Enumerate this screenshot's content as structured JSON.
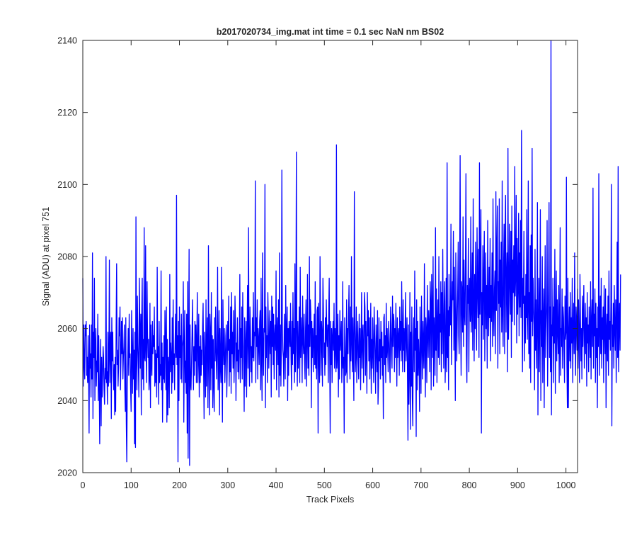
{
  "chart_data": {
    "type": "line",
    "title": "b2017020734_img.mat int time = 0.1 sec  NaN nm BS02",
    "xlabel": "Track Pixels",
    "ylabel": "Signal (ADU) at pixel 751",
    "xlim": [
      0,
      1024
    ],
    "ylim": [
      2020,
      2140
    ],
    "xticks": [
      "0",
      "100",
      "200",
      "300",
      "400",
      "500",
      "600",
      "700",
      "800",
      "900",
      "1000"
    ],
    "yticks": [
      "2020",
      "2040",
      "2060",
      "2080",
      "2100",
      "2120",
      "2140"
    ],
    "grid": false,
    "legend": "none",
    "series": [
      {
        "color": "#0000ff",
        "x_start": 0,
        "x_step": 1,
        "values": [
          2074,
          2044,
          2061,
          2050,
          2046,
          2061,
          2058,
          2062,
          2047,
          2052,
          2045,
          2058,
          2047,
          2031,
          2061,
          2049,
          2053,
          2041,
          2061,
          2046,
          2081,
          2035,
          2059,
          2052,
          2074,
          2040,
          2055,
          2060,
          2044,
          2051,
          2048,
          2064,
          2040,
          2058,
          2044,
          2028,
          2047,
          2057,
          2033,
          2052,
          2041,
          2047,
          2055,
          2052,
          2043,
          2039,
          2049,
          2046,
          2080,
          2045,
          2048,
          2039,
          2059,
          2044,
          2052,
          2079,
          2045,
          2056,
          2059,
          2035,
          2063,
          2051,
          2059,
          2047,
          2043,
          2050,
          2036,
          2052,
          2037,
          2061,
          2078,
          2050,
          2054,
          2044,
          2049,
          2063,
          2058,
          2066,
          2043,
          2052,
          2062,
          2053,
          2063,
          2046,
          2052,
          2055,
          2061,
          2043,
          2037,
          2063,
          2034,
          2023,
          2044,
          2051,
          2060,
          2047,
          2064,
          2052,
          2053,
          2043,
          2037,
          2065,
          2053,
          2042,
          2060,
          2046,
          2054,
          2028,
          2059,
          2027,
          2091,
          2052,
          2043,
          2069,
          2056,
          2050,
          2041,
          2074,
          2060,
          2049,
          2064,
          2036,
          2063,
          2074,
          2046,
          2057,
          2043,
          2088,
          2052,
          2051,
          2083,
          2054,
          2045,
          2073,
          2058,
          2052,
          2057,
          2043,
          2046,
          2067,
          2038,
          2061,
          2050,
          2047,
          2062,
          2053,
          2058,
          2055,
          2066,
          2044,
          2054,
          2045,
          2053,
          2041,
          2077,
          2052,
          2055,
          2039,
          2062,
          2045,
          2050,
          2047,
          2076,
          2043,
          2056,
          2034,
          2052,
          2046,
          2058,
          2045,
          2065,
          2057,
          2043,
          2066,
          2034,
          2057,
          2036,
          2052,
          2049,
          2038,
          2075,
          2048,
          2056,
          2052,
          2042,
          2063,
          2045,
          2068,
          2050,
          2053,
          2043,
          2056,
          2064,
          2052,
          2097,
          2050,
          2058,
          2023,
          2062,
          2040,
          2066,
          2052,
          2058,
          2046,
          2064,
          2045,
          2055,
          2057,
          2073,
          2034,
          2052,
          2065,
          2045,
          2051,
          2042,
          2064,
          2031,
          2073,
          2024,
          2055,
          2082,
          2022,
          2061,
          2045,
          2043,
          2050,
          2058,
          2068,
          2054,
          2043,
          2055,
          2047,
          2062,
          2051,
          2061,
          2045,
          2057,
          2070,
          2045,
          2052,
          2064,
          2041,
          2055,
          2045,
          2058,
          2047,
          2054,
          2050,
          2061,
          2067,
          2049,
          2035,
          2059,
          2052,
          2041,
          2068,
          2044,
          2056,
          2063,
          2038,
          2083,
          2051,
          2036,
          2064,
          2059,
          2043,
          2070,
          2049,
          2058,
          2038,
          2057,
          2045,
          2037,
          2063,
          2051,
          2066,
          2054,
          2046,
          2055,
          2077,
          2043,
          2052,
          2065,
          2036,
          2060,
          2050,
          2045,
          2077,
          2048,
          2034,
          2068,
          2055,
          2050,
          2060,
          2045,
          2051,
          2058,
          2061,
          2041,
          2050,
          2062,
          2054,
          2069,
          2044,
          2057,
          2048,
          2066,
          2042,
          2070,
          2053,
          2059,
          2049,
          2065,
          2045,
          2053,
          2069,
          2061,
          2040,
          2056,
          2051,
          2063,
          2048,
          2054,
          2046,
          2058,
          2075,
          2045,
          2060,
          2052,
          2066,
          2046,
          2070,
          2057,
          2050,
          2037,
          2063,
          2044,
          2055,
          2062,
          2041,
          2058,
          2072,
          2049,
          2088,
          2055,
          2044,
          2066,
          2059,
          2048,
          2055,
          2045,
          2063,
          2052,
          2070,
          2051,
          2059,
          2058,
          2101,
          2045,
          2063,
          2055,
          2068,
          2046,
          2060,
          2057,
          2050,
          2062,
          2065,
          2043,
          2074,
          2051,
          2040,
          2081,
          2054,
          2047,
          2060,
          2059,
          2100,
          2038,
          2066,
          2052,
          2058,
          2045,
          2070,
          2062,
          2049,
          2057,
          2065,
          2053,
          2062,
          2041,
          2069,
          2055,
          2066,
          2050,
          2064,
          2046,
          2058,
          2061,
          2054,
          2076,
          2043,
          2059,
          2063,
          2050,
          2068,
          2041,
          2081,
          2047,
          2061,
          2044,
          2055,
          2104,
          2061,
          2054,
          2052,
          2044,
          2064,
          2057,
          2046,
          2072,
          2052,
          2058,
          2066,
          2040,
          2060,
          2047,
          2062,
          2058,
          2055,
          2067,
          2052,
          2043,
          2062,
          2050,
          2070,
          2053,
          2060,
          2045,
          2078,
          2048,
          2059,
          2109,
          2054,
          2044,
          2062,
          2049,
          2055,
          2066,
          2045,
          2077,
          2052,
          2063,
          2058,
          2045,
          2069,
          2057,
          2053,
          2064,
          2051,
          2046,
          2060,
          2068,
          2044,
          2057,
          2075,
          2049,
          2061,
          2047,
          2080,
          2055,
          2068,
          2064,
          2038,
          2062,
          2052,
          2060,
          2048,
          2057,
          2064,
          2050,
          2073,
          2049,
          2058,
          2046,
          2065,
          2066,
          2031,
          2067,
          2053,
          2045,
          2080,
          2060,
          2047,
          2062,
          2058,
          2044,
          2074,
          2065,
          2052,
          2056,
          2047,
          2063,
          2050,
          2068,
          2058,
          2055,
          2061,
          2045,
          2064,
          2074,
          2052,
          2031,
          2062,
          2050,
          2060,
          2045,
          2058,
          2062,
          2054,
          2067,
          2049,
          2060,
          2055,
          2048,
          2111,
          2049,
          2053,
          2064,
          2041,
          2058,
          2046,
          2065,
          2054,
          2057,
          2062,
          2045,
          2050,
          2073,
          2049,
          2052,
          2031,
          2063,
          2056,
          2047,
          2048,
          2068,
          2045,
          2060,
          2053,
          2064,
          2072,
          2054,
          2046,
          2066,
          2051,
          2080,
          2056,
          2048,
          2063,
          2052,
          2040,
          2098,
          2062,
          2048,
          2053,
          2066,
          2045,
          2057,
          2062,
          2051,
          2046,
          2064,
          2052,
          2060,
          2043,
          2055,
          2070,
          2049,
          2058,
          2061,
          2045,
          2054,
          2070,
          2066,
          2047,
          2062,
          2053,
          2042,
          2070,
          2058,
          2065,
          2051,
          2063,
          2046,
          2055,
          2067,
          2042,
          2057,
          2049,
          2063,
          2053,
          2045,
          2066,
          2059,
          2052,
          2042,
          2061,
          2055,
          2048,
          2065,
          2039,
          2044,
          2063,
          2051,
          2057,
          2046,
          2062,
          2052,
          2059,
          2047,
          2055,
          2035,
          2063,
          2064,
          2050,
          2058,
          2045,
          2067,
          2052,
          2060,
          2054,
          2048,
          2062,
          2058,
          2051,
          2045,
          2066,
          2061,
          2053,
          2049,
          2069,
          2055,
          2064,
          2062,
          2048,
          2060,
          2052,
          2067,
          2056,
          2044,
          2063,
          2052,
          2058,
          2060,
          2047,
          2066,
          2054,
          2062,
          2051,
          2073,
          2058,
          2048,
          2068,
          2054,
          2060,
          2048,
          2059,
          2070,
          2051,
          2057,
          2063,
          2046,
          2029,
          2061,
          2039,
          2049,
          2070,
          2032,
          2059,
          2044,
          2066,
          2041,
          2033,
          2058,
          2063,
          2048,
          2076,
          2054,
          2060,
          2030,
          2068,
          2043,
          2062,
          2047,
          2057,
          2051,
          2037,
          2066,
          2053,
          2042,
          2069,
          2057,
          2046,
          2062,
          2054,
          2049,
          2078,
          2055,
          2041,
          2063,
          2059,
          2045,
          2072,
          2058,
          2052,
          2065,
          2061,
          2048,
          2073,
          2067,
          2043,
          2075,
          2064,
          2052,
          2080,
          2044,
          2063,
          2058,
          2047,
          2088,
          2054,
          2071,
          2045,
          2062,
          2068,
          2052,
          2080,
          2050,
          2064,
          2059,
          2073,
          2048,
          2070,
          2053,
          2082,
          2062,
          2049,
          2067,
          2073,
          2045,
          2054,
          2074,
          2048,
          2106,
          2052,
          2065,
          2043,
          2075,
          2058,
          2066,
          2061,
          2089,
          2050,
          2064,
          2073,
          2068,
          2087,
          2054,
          2077,
          2060,
          2040,
          2081,
          2066,
          2051,
          2062,
          2071,
          2084,
          2058,
          2053,
          2076,
          2108,
          2064,
          2047,
          2073,
          2070,
          2059,
          2091,
          2055,
          2079,
          2064,
          2061,
          2078,
          2103,
          2053,
          2045,
          2072,
          2067,
          2085,
          2048,
          2069,
          2074,
          2062,
          2091,
          2059,
          2066,
          2081,
          2054,
          2096,
          2068,
          2051,
          2075,
          2060,
          2084,
          2066,
          2054,
          2088,
          2071,
          2063,
          2082,
          2052,
          2106,
          2064,
          2075,
          2093,
          2031,
          2070,
          2061,
          2083,
          2057,
          2074,
          2087,
          2051,
          2066,
          2081,
          2060,
          2072,
          2049,
          2090,
          2066,
          2058,
          2077,
          2063,
          2085,
          2051,
          2072,
          2062,
          2081,
          2055,
          2096,
          2067,
          2058,
          2071,
          2076,
          2053,
          2098,
          2065,
          2081,
          2094,
          2049,
          2073,
          2067,
          2096,
          2053,
          2079,
          2066,
          2084,
          2059,
          2101,
          2064,
          2055,
          2078,
          2089,
          2053,
          2085,
          2097,
          2059,
          2074,
          2081,
          2048,
          2110,
          2057,
          2067,
          2089,
          2072,
          2064,
          2087,
          2052,
          2094,
          2062,
          2079,
          2070,
          2083,
          2061,
          2105,
          2069,
          2075,
          2097,
          2056,
          2085,
          2064,
          2072,
          2092,
          2058,
          2081,
          2066,
          2090,
          2063,
          2115,
          2071,
          2048,
          2074,
          2067,
          2087,
          2051,
          2069,
          2056,
          2075,
          2063,
          2093,
          2057,
          2066,
          2101,
          2053,
          2070,
          2049,
          2083,
          2045,
          2086,
          2062,
          2110,
          2058,
          2074,
          2066,
          2061,
          2043,
          2082,
          2054,
          2068,
          2049,
          2061,
          2095,
          2036,
          2059,
          2074,
          2048,
          2068,
          2093,
          2040,
          2065,
          2055,
          2080,
          2045,
          2062,
          2071,
          2038,
          2066,
          2083,
          2052,
          2061,
          2067,
          2090,
          2044,
          2059,
          2072,
          2095,
          2052,
          2066,
          2048,
          2140,
          2036,
          2061,
          2058,
          2074,
          2045,
          2066,
          2056,
          2082,
          2042,
          2063,
          2076,
          2051,
          2068,
          2060,
          2053,
          2072,
          2045,
          2064,
          2088,
          2047,
          2060,
          2055,
          2071,
          2049,
          2066,
          2063,
          2054,
          2045,
          2069,
          2057,
          2059,
          2102,
          2050,
          2038,
          2074,
          2038,
          2058,
          2066,
          2051,
          2070,
          2049,
          2063,
          2056,
          2074,
          2045,
          2060,
          2067,
          2053,
          2081,
          2058,
          2047,
          2066,
          2062,
          2054,
          2071,
          2049,
          2068,
          2057,
          2045,
          2075,
          2063,
          2051,
          2060,
          2046,
          2069,
          2055,
          2064,
          2072,
          2049,
          2058,
          2067,
          2053,
          2063,
          2044,
          2070,
          2056,
          2061,
          2048,
          2066,
          2059,
          2052,
          2073,
          2046,
          2062,
          2068,
          2055,
          2099,
          2049,
          2064,
          2058,
          2071,
          2045,
          2067,
          2052,
          2060,
          2038,
          2066,
          2055,
          2103,
          2047,
          2061,
          2069,
          2053,
          2074,
          2049,
          2063,
          2057,
          2066,
          2045,
          2072,
          2059,
          2053,
          2071,
          2038,
          2060,
          2064,
          2051,
          2069,
          2047,
          2076,
          2057,
          2062,
          2054,
          2067,
          2100,
          2033,
          2061,
          2055,
          2067,
          2049,
          2072,
          2060,
          2054,
          2068,
          2045,
          2063,
          2084,
          2052,
          2105,
          2048,
          2060,
          2067,
          2054,
          2075
        ]
      }
    ]
  }
}
